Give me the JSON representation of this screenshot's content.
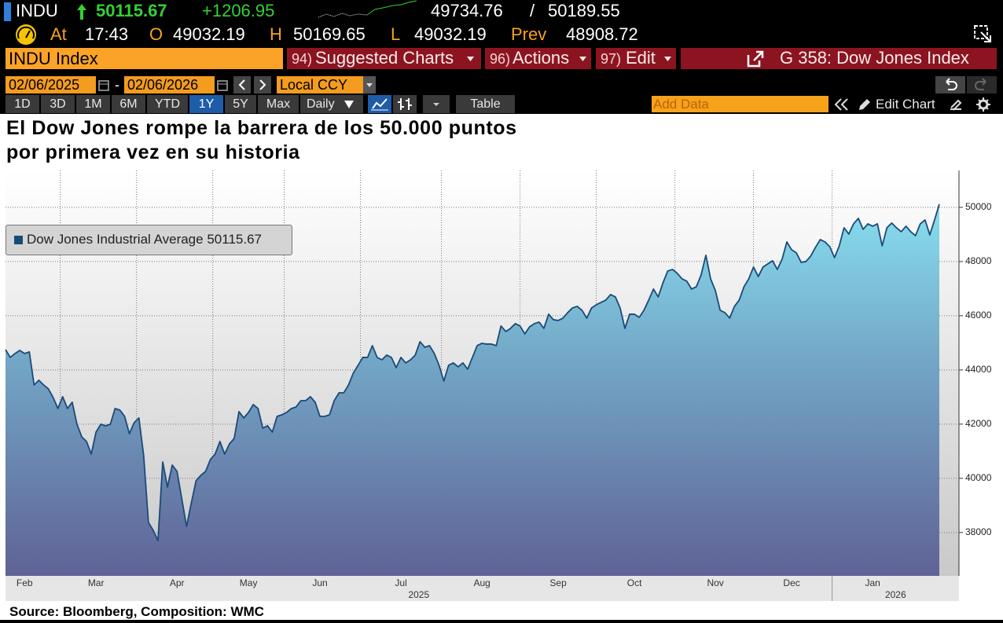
{
  "header": {
    "ticker": "INDU",
    "last": "50115.67",
    "change": "+1206.95",
    "bid": "49734.76",
    "separator": "/",
    "ask": "50189.55",
    "quote_row": [
      {
        "label": "At",
        "value": "17:43"
      },
      {
        "label": "O",
        "value": "49032.19"
      },
      {
        "label": "H",
        "value": "50169.65"
      },
      {
        "label": "L",
        "value": "49032.19"
      },
      {
        "label": "Prev",
        "value": "48908.72"
      }
    ]
  },
  "menu": {
    "security": "INDU Index",
    "items": [
      {
        "number": "94)",
        "label": "Suggested Charts"
      },
      {
        "number": "96)",
        "label": "Actions"
      },
      {
        "number": "97)",
        "label": "Edit"
      }
    ],
    "function": "G 358: Dow Jones Index"
  },
  "toolbar": {
    "start_date": "02/06/2025",
    "date_separator": "-",
    "end_date": "02/06/2026",
    "currency": "Local CCY",
    "periods": [
      "1D",
      "3D",
      "1M",
      "6M",
      "YTD",
      "1Y",
      "5Y",
      "Max"
    ],
    "frequency": "Daily",
    "table": "Table",
    "add_data": "Add Data",
    "edit_chart": "Edit Chart"
  },
  "chart_data": {
    "type": "area",
    "title": [
      "El Dow Jones rompe la barrera de los 50.000 puntos",
      "por primera vez en su historia"
    ],
    "source": "Source: Bloomberg, Composition: WMC",
    "year_labels": [
      "2025",
      "2026"
    ],
    "categories": [
      null,
      null,
      null,
      null,
      "Feb",
      null,
      null,
      null,
      null,
      null,
      null,
      null,
      null,
      null,
      null,
      null,
      null,
      null,
      null,
      "Mar",
      null,
      null,
      null,
      null,
      null,
      null,
      null,
      null,
      null,
      null,
      null,
      null,
      null,
      null,
      null,
      null,
      "Apr",
      null,
      null,
      null,
      null,
      null,
      null,
      null,
      null,
      null,
      null,
      null,
      null,
      null,
      null,
      "May",
      null,
      null,
      null,
      null,
      null,
      null,
      null,
      null,
      null,
      null,
      null,
      null,
      null,
      null,
      "Jun",
      null,
      null,
      null,
      null,
      null,
      null,
      null,
      null,
      null,
      null,
      null,
      null,
      null,
      null,
      null,
      null,
      "Jul",
      null,
      null,
      null,
      null,
      null,
      null,
      null,
      null,
      null,
      null,
      null,
      null,
      null,
      null,
      null,
      null,
      "Aug",
      null,
      null,
      null,
      null,
      null,
      null,
      null,
      null,
      null,
      null,
      null,
      null,
      null,
      null,
      null,
      "Sep",
      null,
      null,
      null,
      null,
      null,
      null,
      null,
      null,
      null,
      null,
      null,
      null,
      null,
      null,
      null,
      "Oct",
      null,
      null,
      null,
      null,
      null,
      null,
      null,
      null,
      null,
      null,
      null,
      null,
      null,
      null,
      null,
      null,
      "Nov",
      null,
      null,
      null,
      null,
      null,
      null,
      null,
      null,
      null,
      null,
      null,
      null,
      null,
      null,
      null,
      "Dec",
      null,
      null,
      null,
      null,
      null,
      null,
      null,
      null,
      null,
      null,
      null,
      null,
      null,
      null,
      null,
      null,
      "Jan",
      null,
      null,
      null,
      null,
      null,
      null,
      null,
      null,
      null,
      null,
      null,
      null,
      null,
      null
    ],
    "series": [
      {
        "name": "Dow Jones Industrial Average",
        "color": "#1a4a78",
        "values": [
          44751,
          44461,
          44606,
          44722,
          44606,
          44664,
          43446,
          43620,
          43446,
          43301,
          42982,
          42576,
          43011,
          42576,
          42808,
          41996,
          41532,
          41358,
          40894,
          41706,
          41996,
          41938,
          41996,
          42576,
          42518,
          42286,
          41648,
          42054,
          42228,
          40836,
          38371,
          38081,
          37704,
          40604,
          39676,
          40488,
          40256,
          39241,
          38226,
          39096,
          39908,
          40111,
          40256,
          40691,
          40894,
          41358,
          40894,
          41271,
          41474,
          42460,
          42228,
          42431,
          42721,
          42576,
          41851,
          41938,
          41706,
          42286,
          42344,
          42431,
          42576,
          42634,
          42866,
          42866,
          43011,
          42808,
          42286,
          42286,
          42344,
          42866,
          43156,
          43156,
          43446,
          43881,
          44171,
          44461,
          44461,
          44896,
          44461,
          44374,
          44548,
          44461,
          44084,
          44461,
          44258,
          44374,
          44548,
          45041,
          44838,
          44896,
          44606,
          44171,
          43591,
          44171,
          44258,
          44113,
          44258,
          44026,
          44461,
          44896,
          44983,
          44954,
          44954,
          44896,
          45621,
          45418,
          45534,
          45708,
          45621,
          45331,
          45592,
          45708,
          45766,
          45534,
          46056,
          45853,
          45824,
          45911,
          46114,
          46288,
          46346,
          46201,
          45911,
          46288,
          46404,
          46491,
          46578,
          46781,
          46694,
          46288,
          45534,
          46056,
          46056,
          45940,
          46201,
          46578,
          46984,
          46694,
          47216,
          47651,
          47709,
          47564,
          47361,
          47274,
          46984,
          47071,
          47506,
          48231,
          47361,
          46926,
          46201,
          46114,
          45911,
          46346,
          46578,
          47071,
          47361,
          47796,
          47448,
          47796,
          47912,
          48028,
          47709,
          48086,
          48724,
          48434,
          48318,
          47970,
          47999,
          48202,
          48521,
          48811,
          48724,
          48550,
          48144,
          48579,
          49246,
          49014,
          49391,
          49594,
          49188,
          49391,
          49304,
          49391,
          48579,
          49246,
          49420,
          49246,
          49101,
          49304,
          49101,
          48956,
          49391,
          49536,
          48985,
          49536,
          50115.67
        ]
      }
    ],
    "ylim": [
      36400,
      51360
    ],
    "yticks": [
      38000,
      40000,
      42000,
      44000,
      46000,
      48000,
      50000
    ],
    "grid": true
  }
}
